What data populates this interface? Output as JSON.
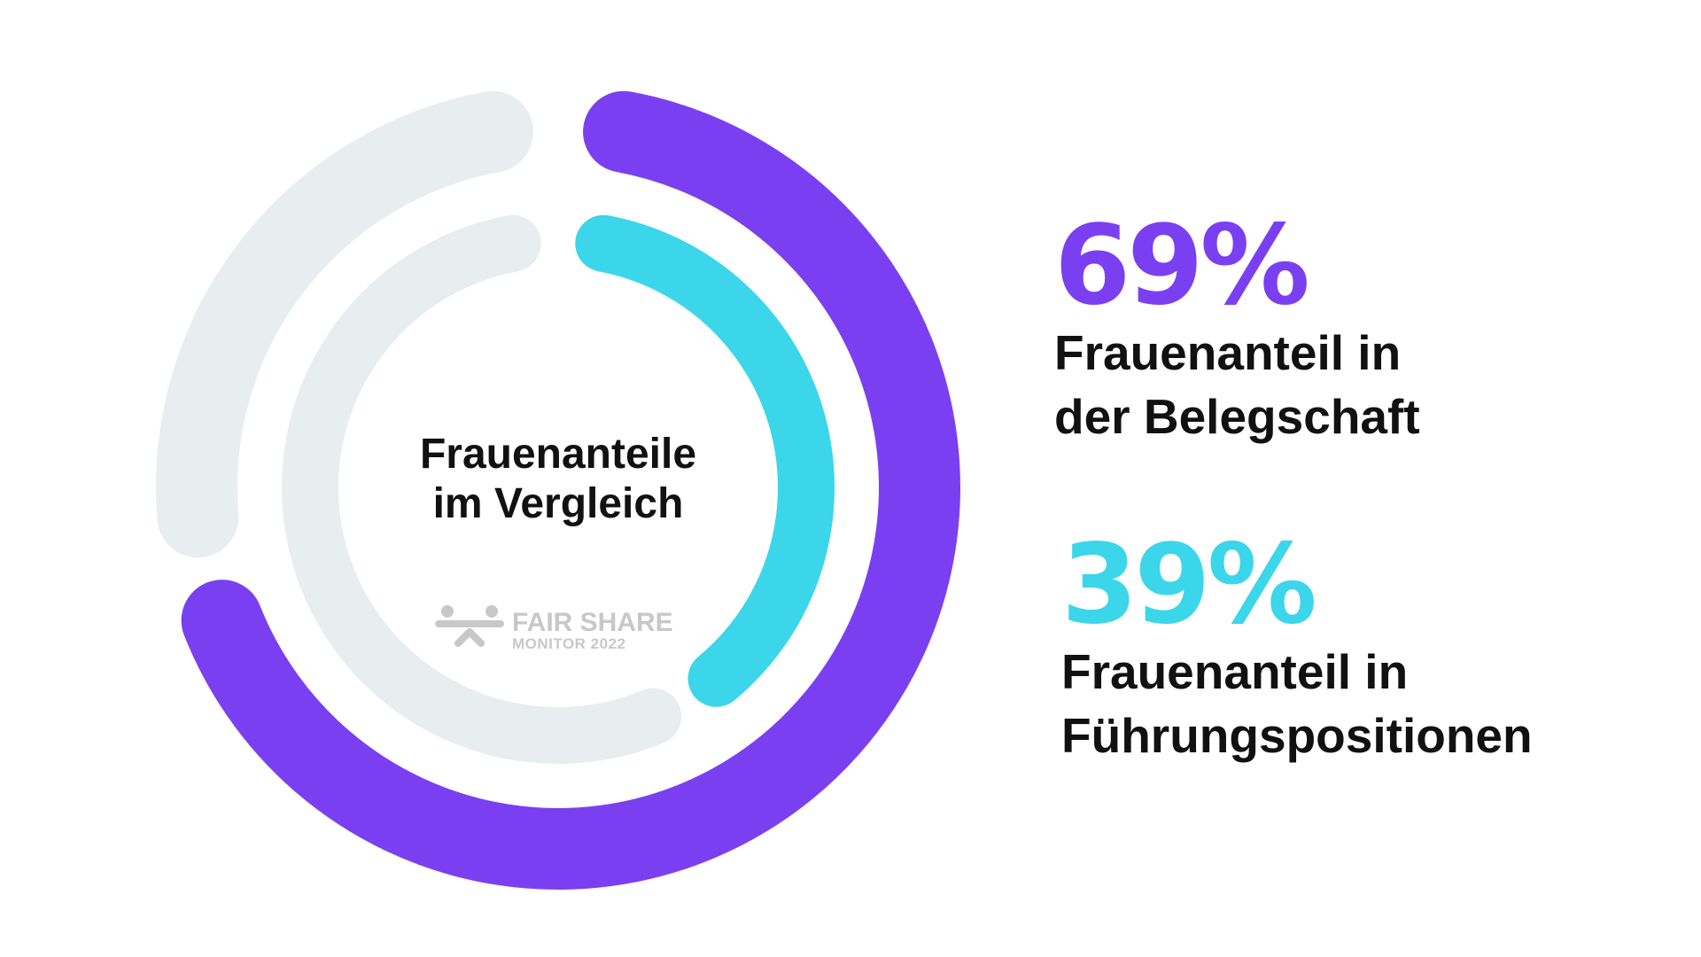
{
  "chart_data": {
    "type": "radial-bar",
    "title_lines": [
      "Frauenanteile",
      "im Vergleich"
    ],
    "max": 100,
    "series": [
      {
        "name": "Frauenanteil in der Belegschaft",
        "value": 69,
        "value_label": "69%",
        "label_lines": [
          "Frauenanteil in",
          "der Belegschaft"
        ],
        "color": "#7b3ff2",
        "track_color": "#e8edef"
      },
      {
        "name": "Frauenanteil in Führungspositionen",
        "value": 39,
        "value_label": "39%",
        "label_lines": [
          "Frauenanteil in",
          "Führungspositionen"
        ],
        "color": "#3bd6ea",
        "track_color": "#e8edef"
      }
    ]
  },
  "logo": {
    "line1": "FAIR SHARE",
    "line2": "MONITOR 2022",
    "color": "#c8c8c8"
  }
}
